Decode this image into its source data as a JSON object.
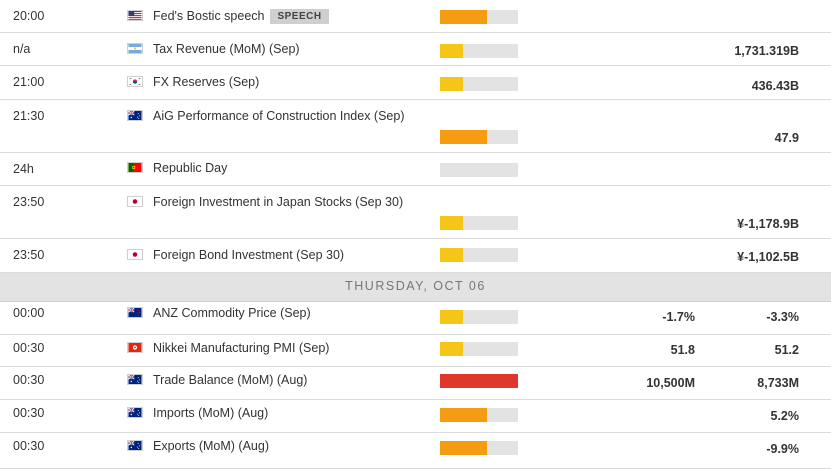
{
  "colors": {
    "impact_low": "#f5c518",
    "impact_medium": "#f59c12",
    "impact_high": "#e0372b",
    "impact_none": "#e3e3e3"
  },
  "date_header": "THURSDAY, OCT 06",
  "events_before": [
    {
      "time": "20:00",
      "flag": "us-flag-icon",
      "name": "Fed's Bostic speech",
      "badge": "SPEECH",
      "impact": "medium",
      "impact_level": 0.6,
      "actual": "",
      "previous": ""
    },
    {
      "time": "n/a",
      "flag": "ar-flag-icon",
      "name": "Tax Revenue (MoM) (Sep)",
      "badge": "",
      "impact": "low",
      "impact_level": 0.3,
      "actual": "",
      "previous": "1,731.319B"
    },
    {
      "time": "21:00",
      "flag": "kr-flag-icon",
      "name": "FX Reserves (Sep)",
      "badge": "",
      "impact": "low",
      "impact_level": 0.3,
      "actual": "",
      "previous": "436.43B"
    },
    {
      "time": "21:30",
      "flag": "au-flag-icon",
      "name": "AiG Performance of Construction Index (Sep)",
      "badge": "",
      "impact": "medium",
      "impact_level": 0.6,
      "actual": "",
      "previous": "47.9"
    },
    {
      "time": "24h",
      "flag": "pt-flag-icon",
      "name": "Republic Day",
      "badge": "",
      "impact": "none",
      "impact_level": 0,
      "actual": "",
      "previous": ""
    },
    {
      "time": "23:50",
      "flag": "jp-flag-icon",
      "name": "Foreign Investment in Japan Stocks (Sep 30)",
      "badge": "",
      "impact": "low",
      "impact_level": 0.3,
      "actual": "",
      "previous": "¥-1,178.9B"
    },
    {
      "time": "23:50",
      "flag": "jp-flag-icon",
      "name": "Foreign Bond Investment (Sep 30)",
      "badge": "",
      "impact": "low",
      "impact_level": 0.3,
      "actual": "",
      "previous": "¥-1,102.5B"
    }
  ],
  "events_after": [
    {
      "time": "00:00",
      "flag": "nz-flag-icon",
      "name": "ANZ Commodity Price (Sep)",
      "badge": "",
      "impact": "low",
      "impact_level": 0.3,
      "actual": "-1.7%",
      "previous": "-3.3%"
    },
    {
      "time": "00:30",
      "flag": "hk-flag-icon",
      "name": "Nikkei Manufacturing PMI (Sep)",
      "badge": "",
      "impact": "low",
      "impact_level": 0.3,
      "actual": "51.8",
      "previous": "51.2"
    },
    {
      "time": "00:30",
      "flag": "au-flag-icon",
      "name": "Trade Balance (MoM) (Aug)",
      "badge": "",
      "impact": "high",
      "impact_level": 1.0,
      "actual": "10,500M",
      "previous": "8,733M"
    },
    {
      "time": "00:30",
      "flag": "au-flag-icon",
      "name": "Imports (MoM) (Aug)",
      "badge": "",
      "impact": "medium",
      "impact_level": 0.6,
      "actual": "",
      "previous": "5.2%"
    },
    {
      "time": "00:30",
      "flag": "au-flag-icon",
      "name": "Exports (MoM) (Aug)",
      "badge": "",
      "impact": "medium",
      "impact_level": 0.6,
      "actual": "",
      "previous": "-9.9%"
    }
  ]
}
